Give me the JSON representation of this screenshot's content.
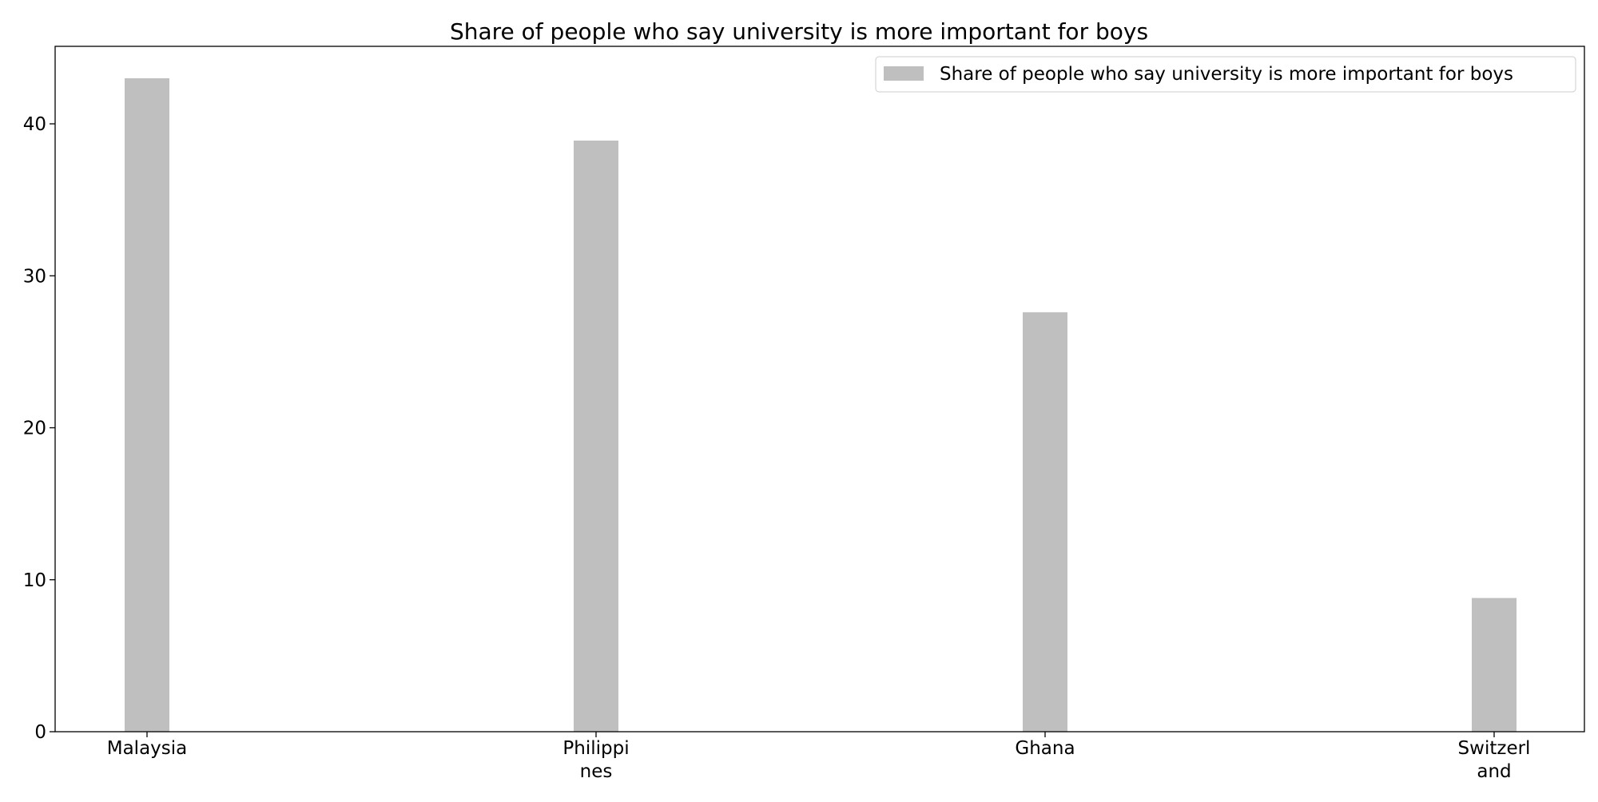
{
  "chart_data": {
    "type": "bar",
    "title": "Share of people who say university is more important for boys",
    "xlabel": "",
    "ylabel": "",
    "categories": [
      [
        "Malaysia"
      ],
      [
        "Philippi",
        "nes"
      ],
      [
        "Ghana"
      ],
      [
        "Switzerl",
        "and"
      ]
    ],
    "series": [
      {
        "name": "Share of people who say university is more important for boys",
        "values": [
          43.0,
          38.9,
          27.6,
          8.8
        ],
        "color": "#bfbfbf"
      }
    ],
    "ylim": [
      0,
      45.1
    ],
    "yticks": [
      0,
      10,
      20,
      30,
      40
    ],
    "grid": false,
    "legend_position": "top-right"
  }
}
